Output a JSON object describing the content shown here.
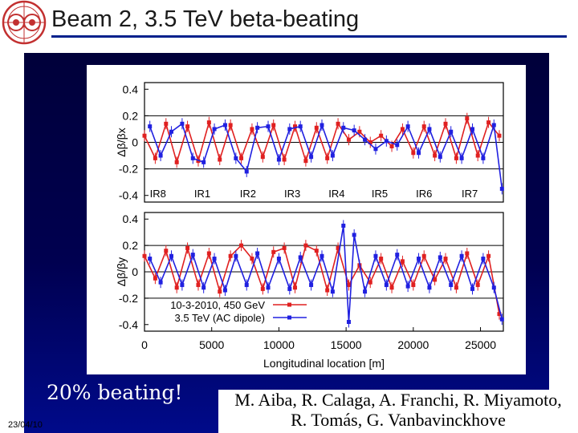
{
  "slide": {
    "title": "Beam 2, 3.5 TeV beta-beating",
    "caption": "20% beating!",
    "date": "23/04/10",
    "authors_line1": "M. Aiba, R. Calaga, A. Franchi, R. Miyamoto,",
    "authors_line2": "R. Tomás, G. Vanbavinckhove",
    "logo_icon": "cern-logo-icon",
    "colors": {
      "title_rule": "#00208c",
      "series_red": "#e02020",
      "series_blue": "#2020e0"
    }
  },
  "chart_data": [
    {
      "type": "scatter",
      "title": "",
      "ylabel": "Δβ/βx",
      "xlabel": "",
      "xlim": [
        0,
        26700
      ],
      "ylim": [
        -0.45,
        0.45
      ],
      "yticks": [
        0.4,
        0.2,
        0,
        -0.2,
        -0.4
      ],
      "yticklabels": [
        "0.4",
        "0.2",
        "0",
        "-0.2",
        "-0.4"
      ],
      "hlines": [
        0.2,
        0,
        -0.2
      ],
      "ir_labels": [
        {
          "label": "IR8",
          "x": 1000
        },
        {
          "label": "IR1",
          "x": 4300
        },
        {
          "label": "IR2",
          "x": 7700
        },
        {
          "label": "IR3",
          "x": 11000
        },
        {
          "label": "IR4",
          "x": 14300
        },
        {
          "label": "IR5",
          "x": 17500
        },
        {
          "label": "IR6",
          "x": 20800
        },
        {
          "label": "IR7",
          "x": 24200
        }
      ],
      "series": [
        {
          "name": "10-3-2010, 450 GeV",
          "color": "#e02020",
          "x": [
            0,
            800,
            1600,
            2400,
            3200,
            4000,
            4800,
            5600,
            6400,
            7200,
            8000,
            8800,
            9600,
            10400,
            11200,
            12000,
            12800,
            13600,
            14400,
            15200,
            16000,
            16800,
            17600,
            18400,
            19200,
            20000,
            20800,
            21600,
            22400,
            23200,
            24000,
            24800,
            25600,
            26400
          ],
          "y": [
            0.05,
            -0.12,
            0.14,
            -0.15,
            0.12,
            -0.14,
            0.15,
            -0.13,
            0.13,
            -0.12,
            0.1,
            -0.11,
            0.13,
            -0.13,
            0.12,
            -0.14,
            0.11,
            -0.12,
            0.14,
            0.02,
            0.08,
            0.0,
            0.05,
            -0.03,
            0.1,
            -0.08,
            0.12,
            -0.1,
            0.14,
            -0.12,
            0.18,
            -0.1,
            0.15,
            0.05
          ]
        },
        {
          "name": "3.5 TeV (AC dipole)",
          "color": "#2020e0",
          "x": [
            400,
            1200,
            2000,
            2800,
            3600,
            4400,
            5200,
            6000,
            6800,
            7600,
            8400,
            9200,
            10000,
            10800,
            11600,
            12400,
            13200,
            14000,
            14800,
            15600,
            16400,
            17200,
            18000,
            18800,
            19600,
            20400,
            21200,
            22000,
            22800,
            23600,
            24400,
            25200,
            26000,
            26600
          ],
          "y": [
            0.12,
            -0.1,
            0.08,
            0.14,
            -0.12,
            -0.15,
            0.1,
            0.13,
            -0.12,
            -0.22,
            0.11,
            0.12,
            -0.13,
            0.1,
            0.12,
            -0.11,
            0.13,
            -0.1,
            0.11,
            0.09,
            0.02,
            -0.05,
            0.01,
            -0.02,
            0.12,
            -0.08,
            0.1,
            -0.11,
            0.08,
            -0.12,
            0.1,
            -0.12,
            0.13,
            -0.35
          ]
        }
      ]
    },
    {
      "type": "scatter",
      "title": "",
      "ylabel": "Δβ/βy",
      "xlabel": "Longitudinal location [m]",
      "xlim": [
        0,
        26700
      ],
      "ylim": [
        -0.45,
        0.45
      ],
      "yticks": [
        0.4,
        0.2,
        0,
        -0.2,
        -0.4
      ],
      "yticklabels": [
        "0.4",
        "0.2",
        "0",
        "-0.2",
        "-0.4"
      ],
      "xticks": [
        0,
        5000,
        10000,
        15000,
        20000,
        25000
      ],
      "xticklabels": [
        "0",
        "5000",
        "10000",
        "15000",
        "20000",
        "25000"
      ],
      "hlines": [
        0.2,
        0,
        -0.2
      ],
      "legend": {
        "position": "bottom-left",
        "entries": [
          "10-3-2010, 450 GeV",
          "3.5 TeV (AC dipole)"
        ]
      },
      "series": [
        {
          "name": "10-3-2010, 450 GeV",
          "color": "#e02020",
          "x": [
            0,
            800,
            1600,
            2400,
            3200,
            4000,
            4800,
            5600,
            6400,
            7200,
            8000,
            8800,
            9600,
            10400,
            11200,
            12000,
            12800,
            13600,
            14400,
            15200,
            16000,
            16800,
            17600,
            18400,
            19200,
            20000,
            20800,
            21600,
            22400,
            23200,
            24000,
            24800,
            25600,
            26400
          ],
          "y": [
            0.12,
            -0.05,
            0.16,
            -0.12,
            0.18,
            -0.1,
            0.14,
            -0.15,
            0.12,
            0.2,
            0.1,
            -0.13,
            0.15,
            0.18,
            -0.12,
            0.2,
            0.16,
            -0.14,
            0.18,
            -0.1,
            0.05,
            -0.08,
            0.1,
            -0.12,
            0.08,
            -0.1,
            0.12,
            -0.06,
            0.1,
            -0.12,
            0.14,
            -0.1,
            0.12,
            -0.32
          ]
        },
        {
          "name": "3.5 TeV (AC dipole)",
          "color": "#2020e0",
          "x": [
            400,
            1200,
            2000,
            2800,
            3600,
            4400,
            5200,
            6000,
            6800,
            7600,
            8400,
            9200,
            10000,
            10800,
            11600,
            12400,
            13200,
            14000,
            14800,
            15200,
            15600,
            16400,
            17200,
            18000,
            18800,
            19600,
            20400,
            21200,
            22000,
            22800,
            23600,
            24400,
            25200,
            26000,
            26600
          ],
          "y": [
            0.1,
            -0.08,
            0.12,
            -0.1,
            0.13,
            -0.12,
            0.1,
            -0.14,
            0.12,
            -0.1,
            0.14,
            -0.12,
            0.1,
            -0.13,
            0.11,
            -0.1,
            0.12,
            -0.15,
            0.35,
            -0.38,
            0.28,
            -0.15,
            0.12,
            -0.1,
            0.13,
            -0.11,
            0.1,
            -0.12,
            0.11,
            -0.1,
            0.12,
            -0.13,
            0.1,
            -0.12,
            -0.36
          ]
        }
      ]
    }
  ]
}
